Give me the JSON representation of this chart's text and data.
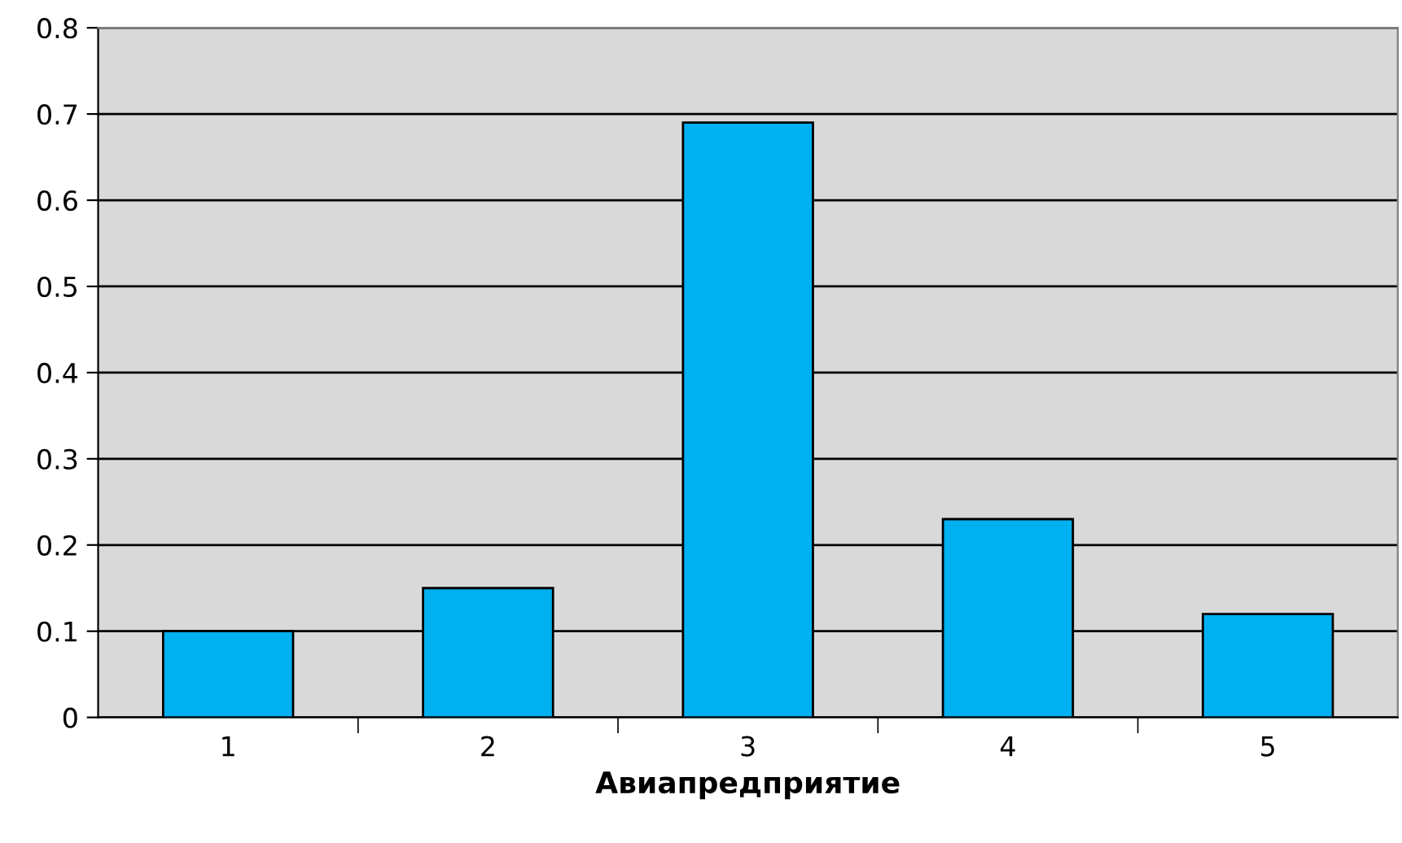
{
  "chart_data": {
    "type": "bar",
    "xlabel": "Авиапредприятие",
    "categories": [
      "1",
      "2",
      "3",
      "4",
      "5"
    ],
    "values": [
      0.1,
      0.15,
      0.69,
      0.23,
      0.12
    ],
    "color": "#00b0f0",
    "ylim": [
      0,
      0.8
    ],
    "yticks": [
      0,
      0.1,
      0.2,
      0.3,
      0.4,
      0.5,
      0.6,
      0.7,
      0.8
    ],
    "grid": "y"
  }
}
